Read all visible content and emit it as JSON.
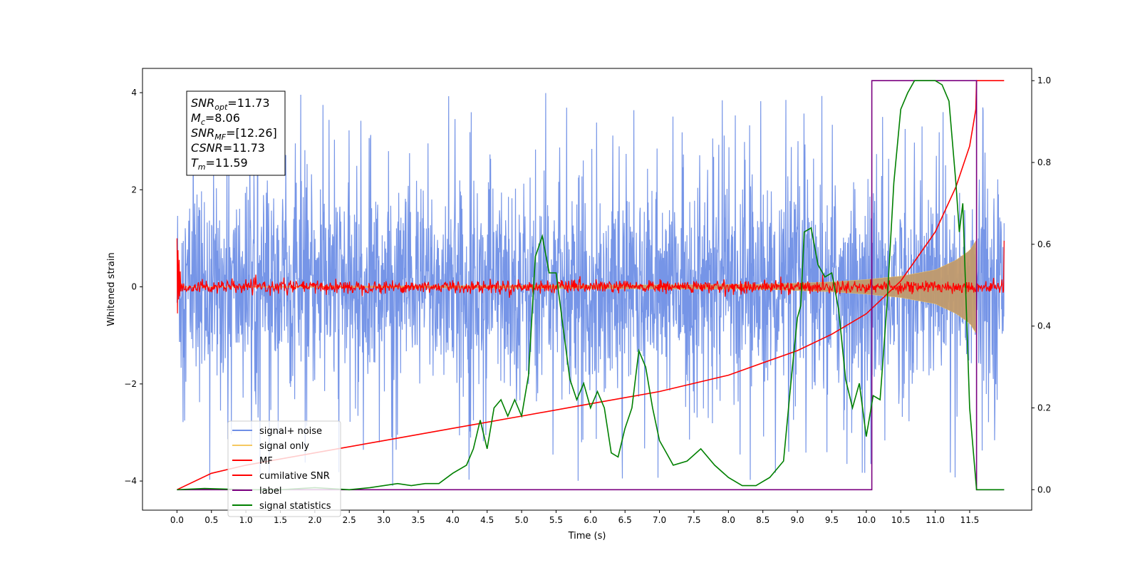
{
  "chart_data": {
    "type": "line",
    "title": "",
    "xlabel": "Time (s)",
    "ylabel": "Whitened strain",
    "ylabel_right": "",
    "xlim": [
      -0.5,
      12.4
    ],
    "ylim_left": [
      -4.6,
      4.5
    ],
    "ylim_right": [
      -0.05,
      1.03
    ],
    "x_ticks": [
      0.0,
      0.5,
      1.0,
      1.5,
      2.0,
      2.5,
      3.0,
      3.5,
      4.0,
      4.5,
      5.0,
      5.5,
      6.0,
      6.5,
      7.0,
      7.5,
      8.0,
      8.5,
      9.0,
      9.5,
      10.0,
      10.5,
      11.0,
      11.5
    ],
    "x_tick_labels": [
      "0.0",
      "0.5",
      "1.0",
      "1.5",
      "2.0",
      "2.5",
      "3.0",
      "3.5",
      "4.0",
      "4.5",
      "5.0",
      "5.5",
      "6.0",
      "6.5",
      "7.0",
      "7.5",
      "8.0",
      "8.5",
      "9.0",
      "9.5",
      "10.0",
      "10.5",
      "11.0",
      "11.5"
    ],
    "y_left_ticks": [
      -4,
      -2,
      0,
      2,
      4
    ],
    "y_left_tick_labels": [
      "−4",
      "−2",
      "0",
      "2",
      "4"
    ],
    "y_right_ticks": [
      0.0,
      0.2,
      0.4,
      0.6,
      0.8,
      1.0
    ],
    "y_right_tick_labels": [
      "0.0",
      "0.2",
      "0.4",
      "0.6",
      "0.8",
      "1.0"
    ],
    "legend_placement": "lower-left",
    "grid": false,
    "series": [
      {
        "name": "signal+ noise",
        "axis": "left",
        "color": "#6f8fe6",
        "kind": "noise",
        "x_range": [
          0.0,
          12.0
        ],
        "envelope": [
          -4.1,
          4.1
        ],
        "note_values": "dense noise trace roughly within ±2.5 with spikes to ±4"
      },
      {
        "name": "signal only",
        "axis": "left",
        "color": "#f5c860",
        "kind": "chirp",
        "x": [
          0.0,
          8.5,
          9.5,
          10.0,
          10.5,
          11.0,
          11.3,
          11.5,
          11.59
        ],
        "amplitude": [
          0.0,
          0.05,
          0.1,
          0.15,
          0.22,
          0.35,
          0.55,
          0.75,
          0.95
        ]
      },
      {
        "name": "MF",
        "axis": "left",
        "color": "#ff0000",
        "kind": "mf_noise",
        "x_range": [
          0.0,
          12.0
        ],
        "start_peak": 1.0,
        "end_peak": 0.95,
        "noise_amplitude": 0.12
      },
      {
        "name": "cumilative SNR",
        "axis": "right",
        "color": "#ff0000",
        "x": [
          0.0,
          0.5,
          1.0,
          2.0,
          3.0,
          4.0,
          5.0,
          6.0,
          7.0,
          8.0,
          8.5,
          9.0,
          9.5,
          10.0,
          10.5,
          11.0,
          11.3,
          11.5,
          11.59,
          11.6,
          12.0
        ],
        "values": [
          0.0,
          0.04,
          0.06,
          0.09,
          0.12,
          0.15,
          0.18,
          0.21,
          0.24,
          0.28,
          0.31,
          0.34,
          0.38,
          0.43,
          0.51,
          0.63,
          0.74,
          0.84,
          0.93,
          1.0,
          1.0
        ]
      },
      {
        "name": "label",
        "axis": "right",
        "color": "#7b0080",
        "x": [
          0.0,
          10.08,
          10.08,
          11.6,
          11.6,
          12.0
        ],
        "values": [
          0.0,
          0.0,
          1.0,
          1.0,
          0.0,
          0.0
        ]
      },
      {
        "name": "signal statistics",
        "axis": "right",
        "color": "#008000",
        "x": [
          0.0,
          0.4,
          1.0,
          1.5,
          2.0,
          2.5,
          2.8,
          3.0,
          3.2,
          3.4,
          3.6,
          3.8,
          4.0,
          4.2,
          4.3,
          4.4,
          4.5,
          4.6,
          4.7,
          4.8,
          4.9,
          5.0,
          5.1,
          5.2,
          5.3,
          5.4,
          5.5,
          5.6,
          5.7,
          5.8,
          5.9,
          6.0,
          6.1,
          6.2,
          6.3,
          6.4,
          6.5,
          6.6,
          6.7,
          6.8,
          6.9,
          7.0,
          7.1,
          7.2,
          7.4,
          7.6,
          7.8,
          8.0,
          8.2,
          8.4,
          8.6,
          8.8,
          8.9,
          9.0,
          9.05,
          9.1,
          9.2,
          9.3,
          9.4,
          9.5,
          9.6,
          9.7,
          9.8,
          9.9,
          10.0,
          10.1,
          10.2,
          10.3,
          10.4,
          10.5,
          10.6,
          10.7,
          10.8,
          10.9,
          11.0,
          11.1,
          11.2,
          11.3,
          11.35,
          11.4,
          11.5,
          11.6,
          12.0
        ],
        "values": [
          0.0,
          0.003,
          0.0,
          0.0,
          0.005,
          0.0,
          0.005,
          0.01,
          0.015,
          0.01,
          0.015,
          0.015,
          0.04,
          0.06,
          0.1,
          0.17,
          0.1,
          0.2,
          0.22,
          0.18,
          0.22,
          0.18,
          0.28,
          0.57,
          0.62,
          0.53,
          0.53,
          0.4,
          0.27,
          0.22,
          0.26,
          0.2,
          0.24,
          0.2,
          0.09,
          0.08,
          0.15,
          0.2,
          0.34,
          0.3,
          0.2,
          0.12,
          0.09,
          0.06,
          0.07,
          0.1,
          0.06,
          0.03,
          0.01,
          0.01,
          0.03,
          0.07,
          0.25,
          0.42,
          0.45,
          0.63,
          0.64,
          0.55,
          0.52,
          0.53,
          0.44,
          0.27,
          0.2,
          0.26,
          0.13,
          0.23,
          0.22,
          0.45,
          0.75,
          0.93,
          0.97,
          1.0,
          1.0,
          1.0,
          1.0,
          0.99,
          0.95,
          0.75,
          0.63,
          0.7,
          0.2,
          0.0,
          0.0
        ]
      }
    ]
  },
  "annotation": {
    "lines": [
      {
        "sym": "SNR",
        "sub": "opt",
        "value": "=11.73"
      },
      {
        "sym": "M",
        "sub": "c",
        "value": "=8.06"
      },
      {
        "sym": "SNR",
        "sub": "MF",
        "value": "=[12.26]"
      },
      {
        "sym": "CSNR",
        "sub": "",
        "value": "=11.73"
      },
      {
        "sym": "T",
        "sub": "m",
        "value": "=11.59"
      }
    ]
  }
}
